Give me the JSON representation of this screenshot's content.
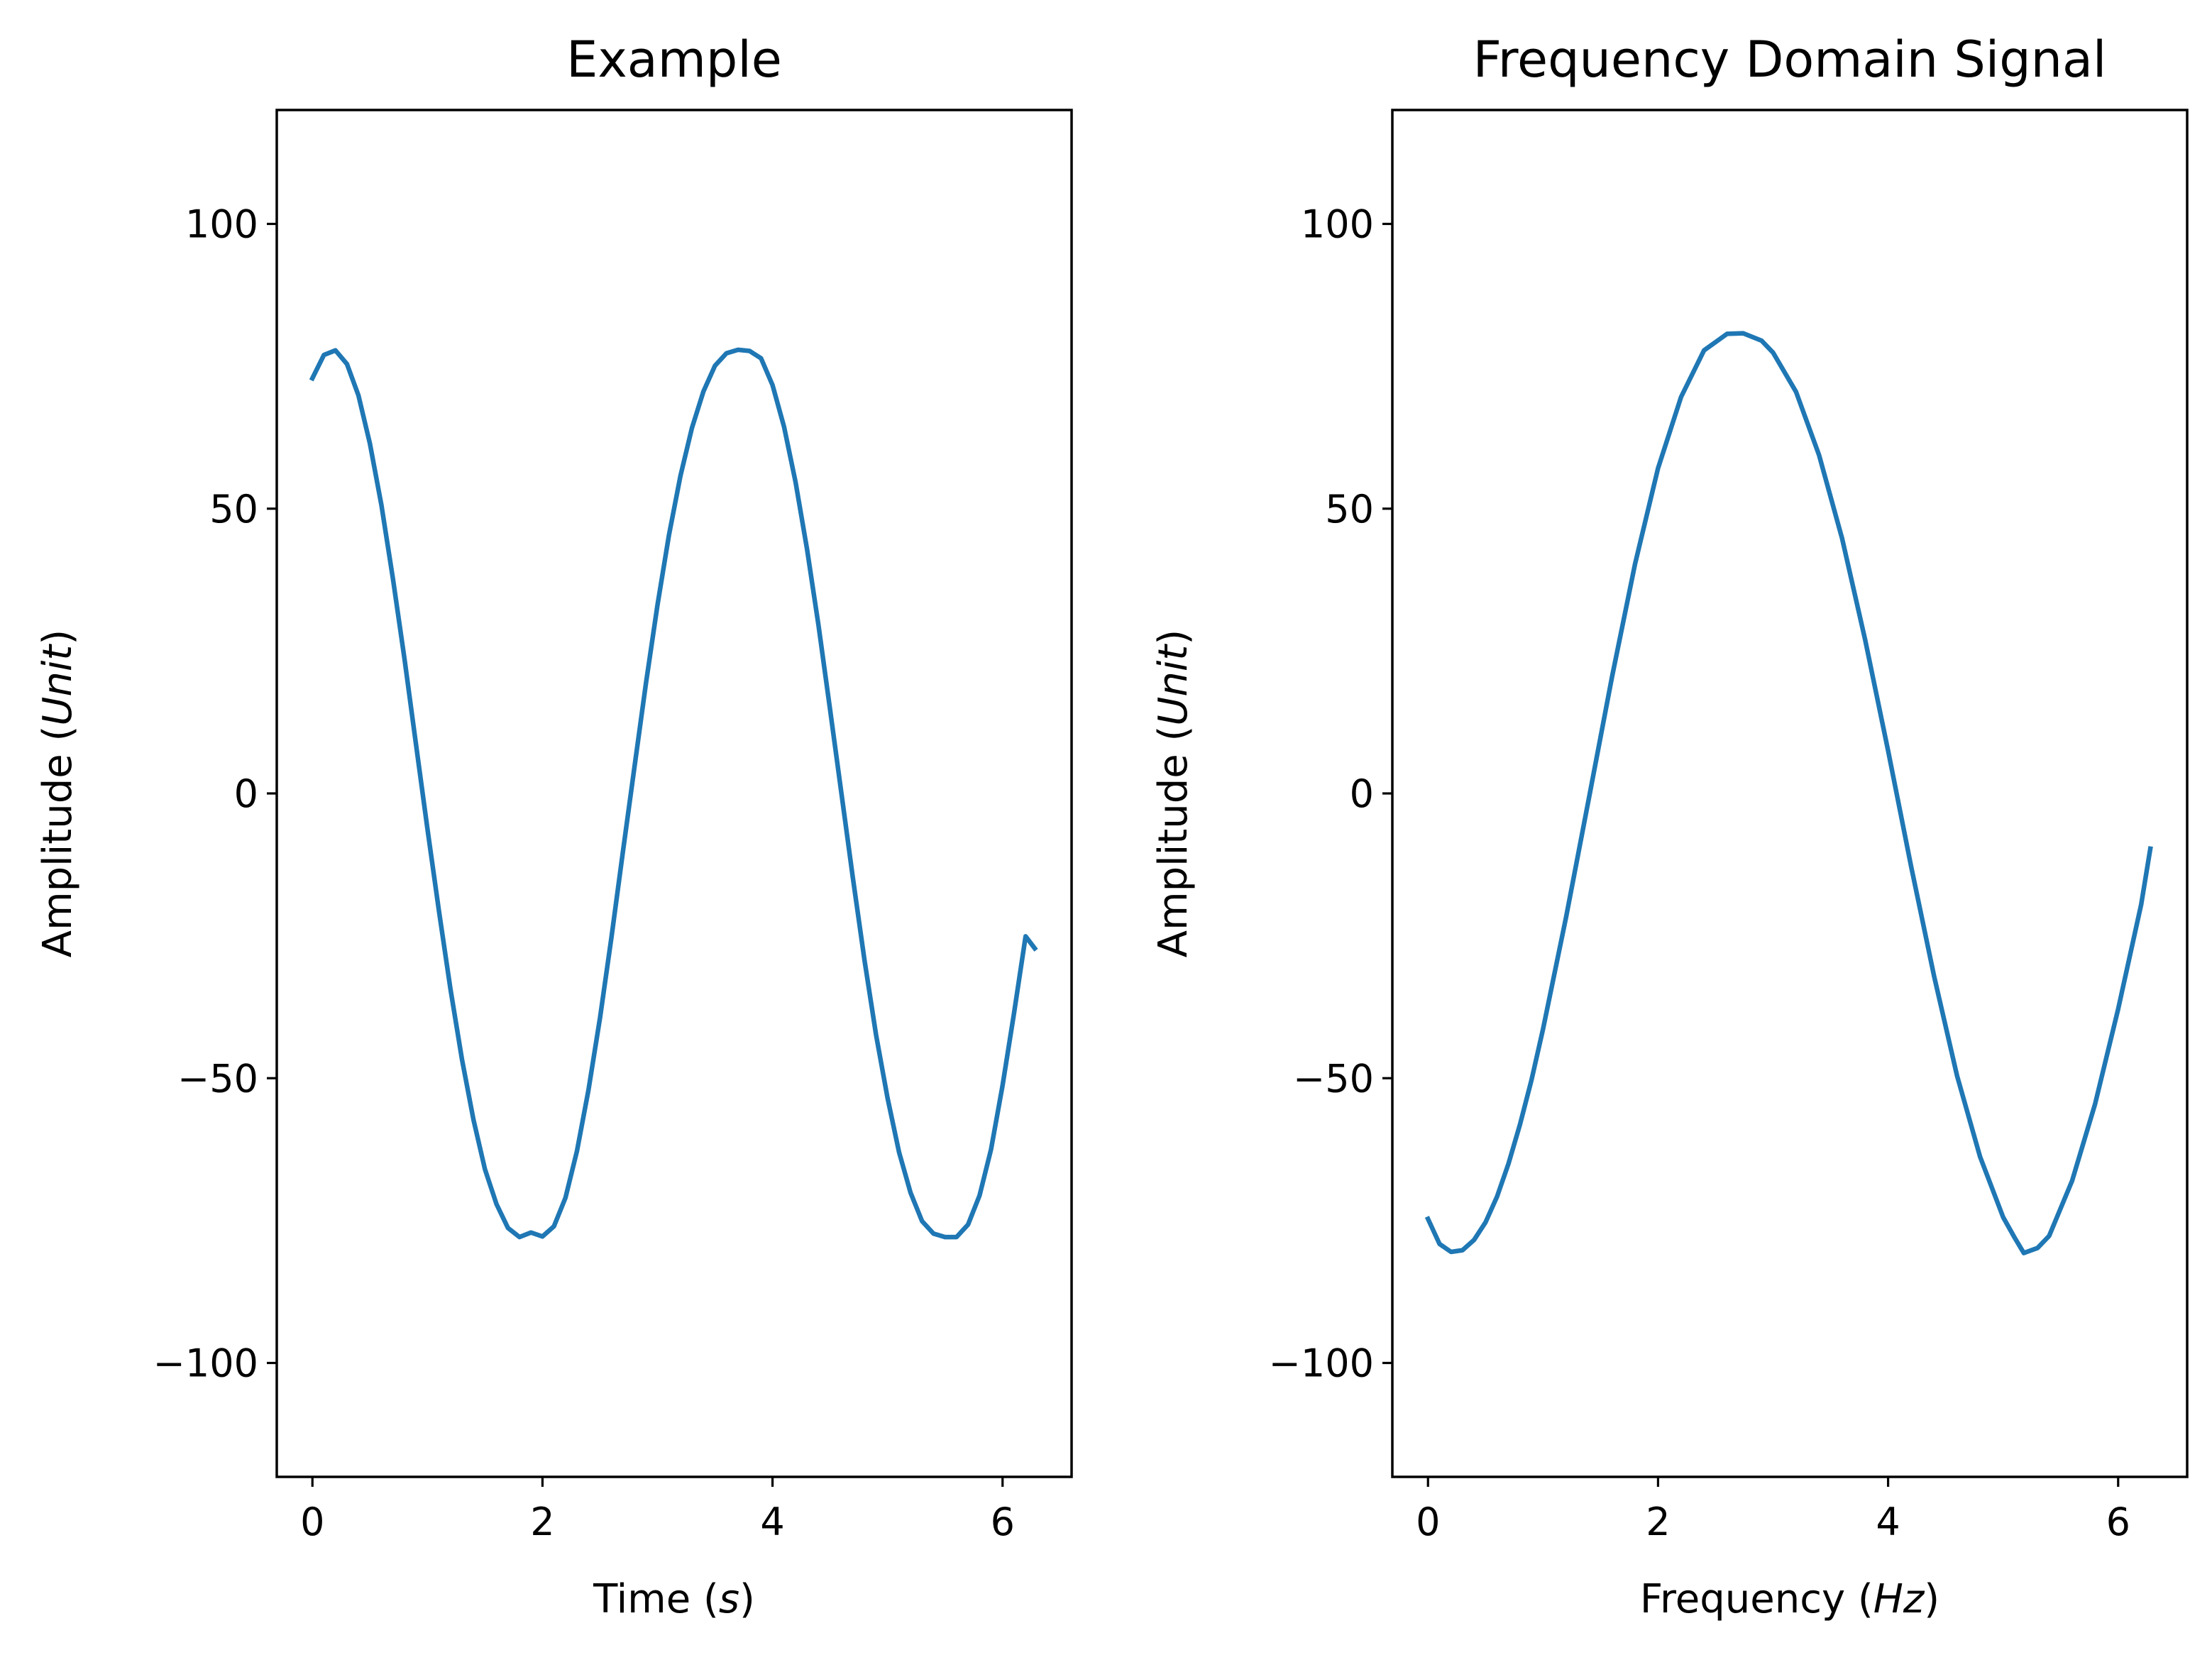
{
  "chart_data": [
    {
      "type": "line",
      "title": "Example",
      "xlabel": "Time (s)",
      "xlabel_parts": [
        "Time (",
        "s",
        ")"
      ],
      "ylabel": "Amplitude (Unit)",
      "ylabel_parts": [
        "Amplitude (",
        "Unit",
        ")"
      ],
      "xlim": [
        -0.31,
        6.6
      ],
      "ylim": [
        -120,
        120
      ],
      "xticks": [
        0,
        2,
        4,
        6
      ],
      "xtick_labels": [
        "0",
        "2",
        "4",
        "6"
      ],
      "yticks": [
        -100,
        -50,
        0,
        50,
        100
      ],
      "ytick_labels": [
        "−100",
        "−50",
        "0",
        "50",
        "100"
      ],
      "grid": false,
      "series": [
        {
          "color": "#1f77b4",
          "x": [
            0,
            0.1,
            0.2,
            0.3,
            0.4,
            0.5,
            0.6,
            0.7,
            0.8,
            0.9,
            1.0,
            1.1,
            1.2,
            1.3,
            1.4,
            1.5,
            1.6,
            1.7,
            1.8,
            1.9,
            2.0,
            2.1,
            2.2,
            2.3,
            2.4,
            2.5,
            2.6,
            2.7,
            2.8,
            2.9,
            3.0,
            3.1,
            3.2,
            3.3,
            3.4,
            3.5,
            3.6,
            3.7,
            3.8,
            3.9,
            4.0,
            4.1,
            4.2,
            4.3,
            4.4,
            4.5,
            4.6,
            4.7,
            4.8,
            4.9,
            5.0,
            5.1,
            5.2,
            5.3,
            5.4,
            5.5,
            5.6,
            5.7,
            5.8,
            5.9,
            6.0,
            6.1,
            6.2,
            6.28
          ],
          "y": [
            72.9,
            77.0,
            77.8,
            75.4,
            69.9,
            61.4,
            50.6,
            37.7,
            23.7,
            8.7,
            -6.2,
            -20.6,
            -34.3,
            -46.7,
            -57.3,
            -66.0,
            -72.1,
            -76.3,
            -77.9,
            -77.1,
            -77.8,
            -76.0,
            -71.0,
            -62.8,
            -52.1,
            -39.4,
            -25.2,
            -10.1,
            4.7,
            19.4,
            33.1,
            45.4,
            55.8,
            64.2,
            70.6,
            75.1,
            77.3,
            77.9,
            77.7,
            76.4,
            71.7,
            64.4,
            54.7,
            42.9,
            29.5,
            14.8,
            -0.1,
            -15.0,
            -29.3,
            -42.4,
            -53.5,
            -63.0,
            -70.1,
            -75.1,
            -77.3,
            -77.9,
            -77.9,
            -75.7,
            -70.6,
            -62.5,
            -51.3,
            -38.5,
            -25.1,
            -27.2
          ]
        }
      ]
    },
    {
      "type": "line",
      "title": "Frequency Domain Signal",
      "xlabel": "Frequency (Hz)",
      "xlabel_parts": [
        "Frequency (",
        "Hz",
        ")"
      ],
      "ylabel": "Amplitude (Unit)",
      "ylabel_parts": [
        "Amplitude (",
        "Unit",
        ")"
      ],
      "xlim": [
        -0.31,
        6.6
      ],
      "ylim": [
        -120,
        120
      ],
      "xticks": [
        0,
        2,
        4,
        6
      ],
      "xtick_labels": [
        "0",
        "2",
        "4",
        "6"
      ],
      "yticks": [
        -100,
        -50,
        0,
        50,
        100
      ],
      "ytick_labels": [
        "−100",
        "−50",
        "0",
        "50",
        "100"
      ],
      "grid": false,
      "series": [
        {
          "color": "#1f77b4",
          "x": [
            0,
            0.1,
            0.2,
            0.3,
            0.4,
            0.5,
            0.6,
            0.7,
            0.8,
            0.9,
            1.0,
            1.2,
            1.4,
            1.6,
            1.8,
            2.0,
            2.2,
            2.4,
            2.6,
            2.74,
            2.9,
            3.0,
            3.2,
            3.4,
            3.6,
            3.8,
            4.0,
            4.2,
            4.4,
            4.6,
            4.8,
            5.0,
            5.1,
            5.18,
            5.3,
            5.4,
            5.6,
            5.8,
            6.0,
            6.2,
            6.28
          ],
          "y": [
            -74.7,
            -79.1,
            -80.5,
            -80.2,
            -78.4,
            -75.3,
            -70.8,
            -65.0,
            -58.1,
            -50.3,
            -41.4,
            -21.8,
            -0.7,
            20.5,
            40.3,
            57.1,
            69.6,
            77.8,
            80.7,
            80.8,
            79.5,
            77.4,
            70.5,
            59.4,
            44.8,
            27.0,
            7.5,
            -12.8,
            -32.1,
            -49.6,
            -63.8,
            -74.4,
            -78.0,
            -80.7,
            -79.8,
            -77.7,
            -68.0,
            -54.5,
            -37.9,
            -19.5,
            -9.7
          ]
        }
      ]
    }
  ]
}
